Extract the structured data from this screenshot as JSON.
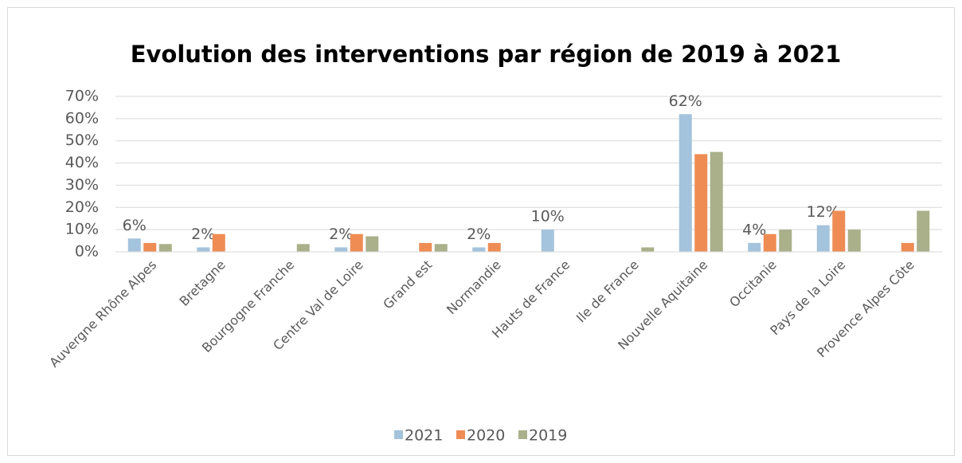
{
  "chart_data": {
    "type": "bar",
    "title": "Evolution des interventions par région de 2019 à 2021",
    "categories": [
      "Auvergne Rhône Alpes",
      "Bretagne",
      "Bourgogne Franche",
      "Centre Val de Loire",
      "Grand est",
      "Normandie",
      "Hauts de France",
      "Ile de France",
      "Nouvelle Aquitaine",
      "Occitanie",
      "Pays de la Loire",
      "Provence Alpes Côte"
    ],
    "series": [
      {
        "name": "2021",
        "color": "#a4c3dc",
        "values": [
          6,
          2,
          0,
          2,
          0,
          2,
          10,
          0,
          62,
          4,
          12,
          0
        ],
        "value_labels": [
          "6%",
          "2%",
          null,
          "2%",
          null,
          "2%",
          "10%",
          null,
          "62%",
          "4%",
          "12%",
          null
        ]
      },
      {
        "name": "2020",
        "color": "#ee8c54",
        "values": [
          4,
          8,
          0,
          8,
          4,
          4,
          0,
          0,
          44,
          8,
          18.5,
          4
        ]
      },
      {
        "name": "2019",
        "color": "#a9b08a",
        "values": [
          3.5,
          0,
          3.5,
          7,
          3.5,
          0,
          0,
          2,
          45,
          10,
          10,
          18.5
        ]
      }
    ],
    "ylim": [
      0,
      70
    ],
    "yticks": [
      {
        "value": 0,
        "label": "0%"
      },
      {
        "value": 10,
        "label": "10%"
      },
      {
        "value": 20,
        "label": "20%"
      },
      {
        "value": 30,
        "label": "30%"
      },
      {
        "value": 40,
        "label": "40%"
      },
      {
        "value": 50,
        "label": "50%"
      },
      {
        "value": 60,
        "label": "60%"
      },
      {
        "value": 70,
        "label": "70%"
      }
    ],
    "grid": true
  }
}
